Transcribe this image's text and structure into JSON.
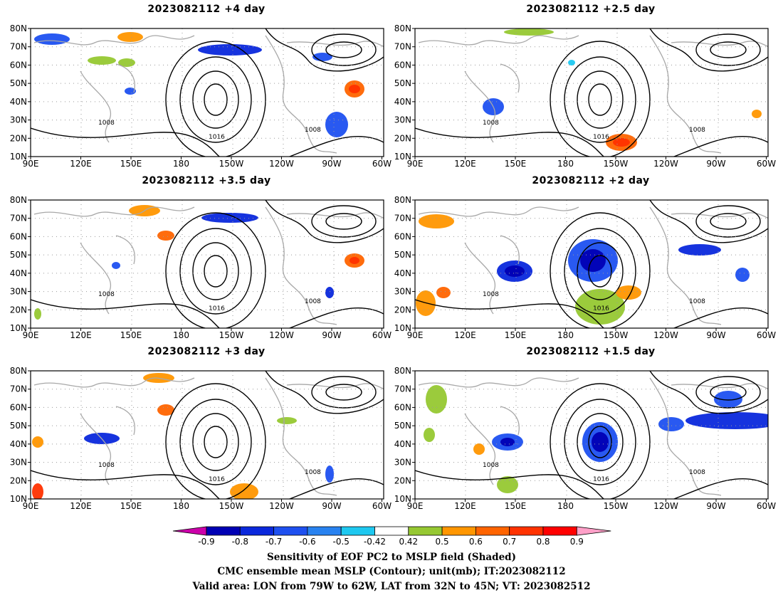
{
  "panels": [
    {
      "title": "2023082112  +4 day",
      "lead": "+4 day"
    },
    {
      "title": "2023082112  +2.5 day",
      "lead": "+2.5 day"
    },
    {
      "title": "2023082112  +3.5 day",
      "lead": "+3.5 day"
    },
    {
      "title": "2023082112  +2 day",
      "lead": "+2 day"
    },
    {
      "title": "2023082112  +3 day",
      "lead": "+3 day"
    },
    {
      "title": "2023082112  +1.5 day",
      "lead": "+1.5 day"
    }
  ],
  "axes": {
    "lat_labels": [
      "80N",
      "70N",
      "60N",
      "50N",
      "40N",
      "30N",
      "20N",
      "10N"
    ],
    "lon_labels": [
      "90E",
      "120E",
      "150E",
      "180",
      "150W",
      "120W",
      "90W",
      "60W"
    ]
  },
  "colorbar": {
    "ticks": [
      "-0.9",
      "-0.8",
      "-0.7",
      "-0.6",
      "-0.5",
      "-0.42",
      "0.42",
      "0.5",
      "0.6",
      "0.7",
      "0.8",
      "0.9"
    ],
    "colors": [
      "#cc00aa",
      "#0000b4",
      "#0a28dc",
      "#1e50f0",
      "#2882f0",
      "#1ec8f0",
      "#ffffff",
      "#96c832",
      "#ff9600",
      "#ff6400",
      "#ff3200",
      "#ff0000",
      "#ffa0c8"
    ]
  },
  "contour_labels": [
    "1008",
    "1016"
  ],
  "footer": {
    "line1": "Sensitivity of EOF PC2 to MSLP field (Shaded)",
    "line2": "CMC ensemble mean MSLP (Contour); unit(mb); IT:2023082112",
    "line3": "Valid area: LON from 79W to 62W, LAT from 32N to 45N; VT: 2023082512"
  }
}
